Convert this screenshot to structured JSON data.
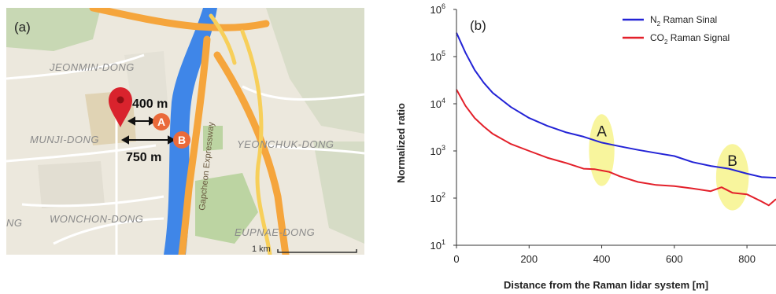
{
  "map": {
    "panel_label": "(a)",
    "areas": {
      "jeonmin": "JEONMIN-DONG",
      "munji": "MUNJI-DONG",
      "wonchon": "WONCHON-DONG",
      "yeonchuk": "YEONCHUK-DONG",
      "eupnae": "EUPNAE-DONG",
      "ng": "NG"
    },
    "road_label": "Gapcheon Expressway",
    "distance_a": "400 m",
    "distance_b": "750 m",
    "marker_a": "A",
    "marker_b": "B",
    "scale_label": "1 km",
    "colors": {
      "water": "#3f86e8",
      "road_major": "#f5a53c",
      "road_minor": "#f7cf5a",
      "pin": "#d9232d",
      "marker": "#ea6a3a"
    }
  },
  "chart_data": {
    "type": "line",
    "panel_label": "(b)",
    "xlabel": "Distance from the Raman lidar system [m]",
    "ylabel": "Normalized ratio",
    "xlim": [
      0,
      880
    ],
    "ylim": [
      10,
      1000000
    ],
    "yscale": "log",
    "xticks": [
      "0",
      "200",
      "400",
      "600",
      "800"
    ],
    "yticks": [
      {
        "base": "10",
        "exp": "1"
      },
      {
        "base": "10",
        "exp": "2"
      },
      {
        "base": "10",
        "exp": "3"
      },
      {
        "base": "10",
        "exp": "4"
      },
      {
        "base": "10",
        "exp": "5"
      },
      {
        "base": "10",
        "exp": "6"
      }
    ],
    "legend_position": "top-right",
    "series": [
      {
        "name": "N2 Raman Sinal",
        "legend_parts": {
          "pre": "N",
          "sub": "2",
          "post": " Raman Sinal"
        },
        "color": "#2323d6",
        "x": [
          0,
          25,
          50,
          75,
          100,
          150,
          200,
          250,
          300,
          350,
          400,
          450,
          500,
          550,
          600,
          650,
          700,
          750,
          800,
          840,
          880
        ],
        "y": [
          320000,
          120000,
          52000,
          28000,
          17000,
          8500,
          5000,
          3400,
          2500,
          2000,
          1500,
          1250,
          1050,
          900,
          780,
          580,
          480,
          420,
          330,
          280,
          270
        ]
      },
      {
        "name": "CO2 Raman Signal",
        "legend_parts": {
          "pre": "CO",
          "sub": "2",
          "post": " Raman Signal"
        },
        "color": "#e3202a",
        "x": [
          0,
          25,
          50,
          75,
          100,
          150,
          200,
          250,
          300,
          350,
          380,
          420,
          450,
          500,
          550,
          600,
          650,
          700,
          730,
          760,
          800,
          840,
          860,
          880
        ],
        "y": [
          20000,
          9000,
          5000,
          3300,
          2300,
          1400,
          1000,
          720,
          560,
          420,
          410,
          360,
          290,
          220,
          190,
          180,
          160,
          140,
          170,
          130,
          120,
          85,
          70,
          95
        ]
      }
    ],
    "annotations": [
      {
        "label": "A",
        "x": 400,
        "y_center": 1000,
        "x_half": 35,
        "y_low": 180,
        "y_high": 6000
      },
      {
        "label": "B",
        "x": 760,
        "y_center": 270,
        "x_half": 45,
        "y_low": 55,
        "y_high": 1400
      }
    ],
    "highlight_color": "#f7f38c"
  }
}
